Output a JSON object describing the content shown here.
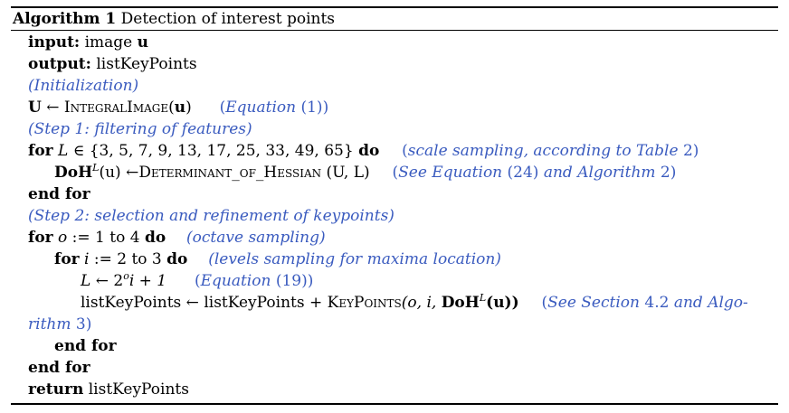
{
  "caption": {
    "number": "Algorithm 1",
    "title": "Detection of interest points"
  },
  "lines": [
    {
      "kw": "input:",
      "text": "image",
      "var": "u"
    },
    {
      "kw": "output:",
      "text": "listKeyPoints"
    },
    {
      "comment": "(Initialization)"
    },
    {
      "lhs": "U",
      "arrow": "←",
      "func": "IntegralImage",
      "arg": "u",
      "comment_open": "(",
      "comment_em": "Equation",
      "comment_ref": "(1)",
      "comment_close": ")"
    },
    {
      "comment": "(Step 1: filtering of features)"
    },
    {
      "kw": "for",
      "var": "L",
      "set_text": "∈ {3, 5, 7, 9, 13, 17, 25, 33, 49, 65}",
      "kw_end": "do",
      "comment_open": "(",
      "comment_em": "scale sampling, according to Table",
      "comment_ref": "2",
      "comment_close": ")"
    },
    {
      "lhs": "DoH",
      "sup": "L",
      "lhs_arg": "(u)",
      "arrow": "←",
      "func": "Determinant_of_Hessian",
      "args": "(U, L)",
      "comment_open": "(",
      "comment_em": "See Equation",
      "comment_ref": "(24)",
      "comment_em2": "and Algorithm",
      "comment_ref2": "2",
      "comment_close": ")"
    },
    {
      "kw": "end for"
    },
    {
      "comment": "(Step 2: selection and refinement of keypoints)"
    },
    {
      "kw": "for",
      "var": "o",
      "assign": ":= 1 to 4",
      "kw_end": "do",
      "comment": "(octave sampling)"
    },
    {
      "kw": "for",
      "var": "i",
      "assign": ":= 2 to 3",
      "kw_end": "do",
      "comment": "(levels sampling for maxima location)"
    },
    {
      "lhs": "L",
      "arrow": "←",
      "expr_base": "2",
      "expr_sup": "o",
      "expr_rest": "i + 1",
      "comment_open": "(",
      "comment_em": "Equation",
      "comment_ref": "(19)",
      "comment_close": ")"
    },
    {
      "text": "listKeyPoints ← listKeyPoints +",
      "func": "KeyPoints",
      "args_open": "(o, i,",
      "arg_b": "DoH",
      "arg_sup": "L",
      "args_close": "(u))",
      "comment_open": "(",
      "comment_em": "See Section",
      "comment_ref": "4.2",
      "comment_em2": "and Algo-"
    },
    {
      "comment_wrap": "rithm",
      "comment_ref": "3",
      "comment_close": ")"
    },
    {
      "kw": "end for"
    },
    {
      "kw": "end for"
    },
    {
      "kw": "return",
      "text": "listKeyPoints"
    }
  ]
}
